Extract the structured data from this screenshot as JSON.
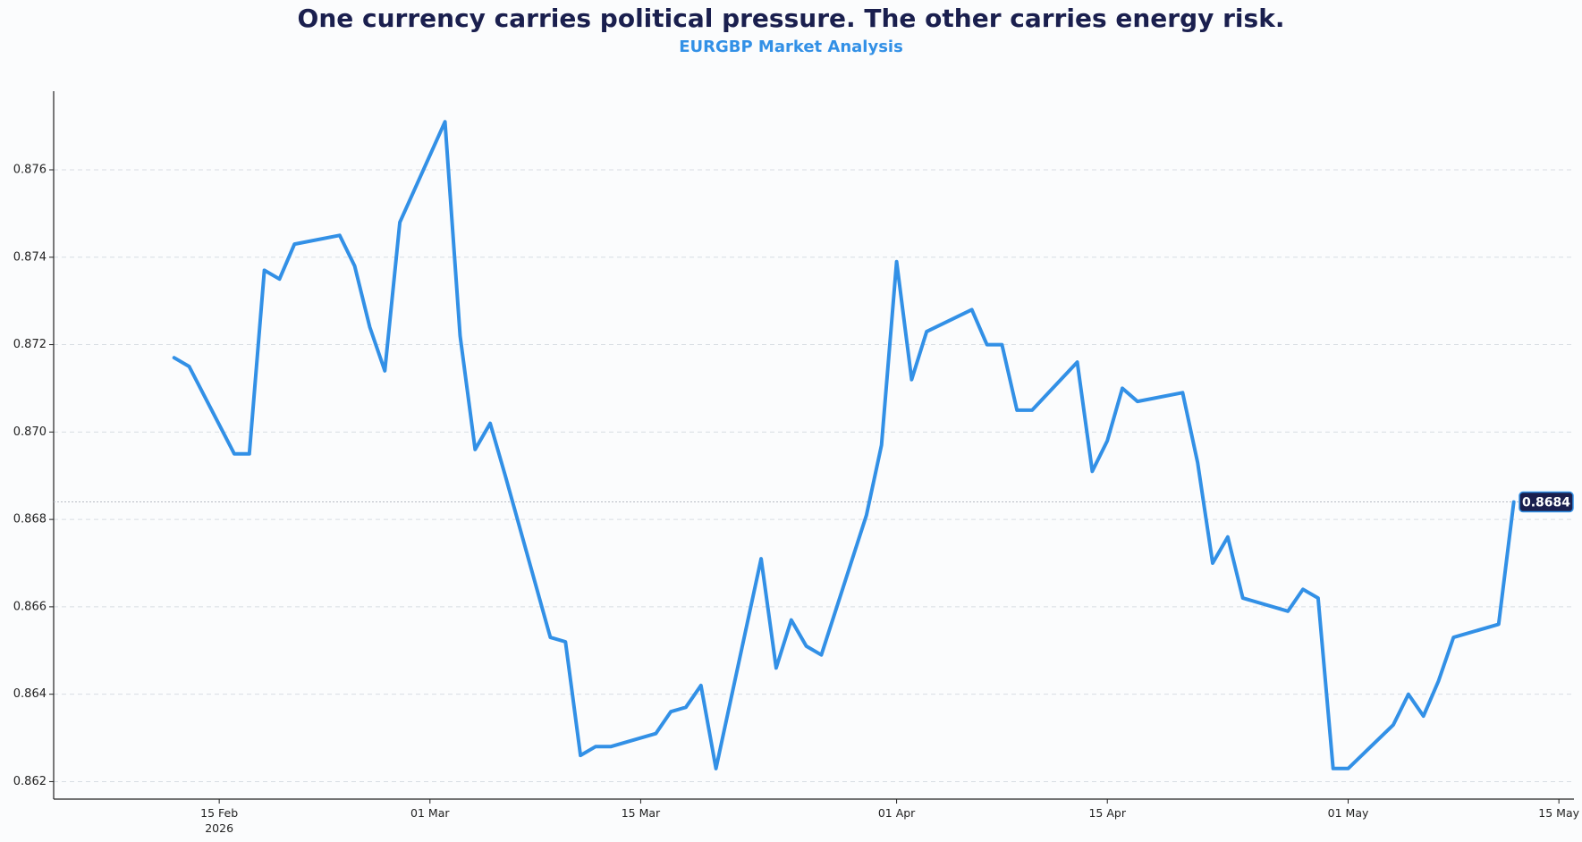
{
  "header": {
    "title": "One currency carries political pressure. The other carries energy risk.",
    "subtitle": "EURGBP Market Analysis"
  },
  "colors": {
    "line": "#3290e6",
    "title": "#1a1f4e",
    "subtitle": "#3290e6",
    "badge_bg": "#1a1f4e",
    "grid": "#d8dde3"
  },
  "chart_data": {
    "type": "line",
    "title": "One currency carries political pressure. The other carries energy risk.",
    "subtitle": "EURGBP Market Analysis",
    "xlabel": "",
    "ylabel": "",
    "ylim": [
      0.8616,
      0.8778
    ],
    "xlim": [
      "2026-02-04",
      "2026-05-16"
    ],
    "grid": "horizontal dashed",
    "y_ticks": [
      0.862,
      0.864,
      0.866,
      0.868,
      0.87,
      0.872,
      0.874,
      0.876
    ],
    "y_tick_labels": [
      "0.862",
      "0.864",
      "0.866",
      "0.868",
      "0.870",
      "0.872",
      "0.874",
      "0.876"
    ],
    "x_ticks": [
      {
        "date": "2026-02-15",
        "label": "15 Feb",
        "sublabel": "2026"
      },
      {
        "date": "2026-03-01",
        "label": "01 Mar",
        "sublabel": ""
      },
      {
        "date": "2026-03-15",
        "label": "15 Mar",
        "sublabel": ""
      },
      {
        "date": "2026-04-01",
        "label": "01 Apr",
        "sublabel": ""
      },
      {
        "date": "2026-04-15",
        "label": "15 Apr",
        "sublabel": ""
      },
      {
        "date": "2026-05-01",
        "label": "01 May",
        "sublabel": ""
      },
      {
        "date": "2026-05-15",
        "label": "15 May",
        "sublabel": ""
      }
    ],
    "last_value_label": "0.8684",
    "series": [
      {
        "name": "",
        "x": [
          "2026-02-12",
          "2026-02-13",
          "2026-02-16",
          "2026-02-17",
          "2026-02-18",
          "2026-02-19",
          "2026-02-20",
          "2026-02-23",
          "2026-02-24",
          "2026-02-25",
          "2026-02-26",
          "2026-02-27",
          "2026-03-02",
          "2026-03-03",
          "2026-03-04",
          "2026-03-05",
          "2026-03-06",
          "2026-03-09",
          "2026-03-10",
          "2026-03-11",
          "2026-03-12",
          "2026-03-13",
          "2026-03-16",
          "2026-03-17",
          "2026-03-18",
          "2026-03-19",
          "2026-03-20",
          "2026-03-23",
          "2026-03-24",
          "2026-03-25",
          "2026-03-26",
          "2026-03-27",
          "2026-03-30",
          "2026-03-31",
          "2026-04-01",
          "2026-04-02",
          "2026-04-03",
          "2026-04-06",
          "2026-04-07",
          "2026-04-08",
          "2026-04-09",
          "2026-04-10",
          "2026-04-13",
          "2026-04-14",
          "2026-04-15",
          "2026-04-16",
          "2026-04-17",
          "2026-04-20",
          "2026-04-21",
          "2026-04-22",
          "2026-04-23",
          "2026-04-24",
          "2026-04-27",
          "2026-04-28",
          "2026-04-29",
          "2026-04-30",
          "2026-05-01",
          "2026-05-04",
          "2026-05-05",
          "2026-05-06",
          "2026-05-07",
          "2026-05-08",
          "2026-05-11",
          "2026-05-12"
        ],
        "values": [
          0.8717,
          0.8715,
          0.8695,
          0.8695,
          0.8737,
          0.8735,
          0.8743,
          0.8745,
          0.8738,
          0.8724,
          0.8714,
          0.8748,
          0.8771,
          0.8722,
          0.8696,
          0.8702,
          0.869,
          0.8653,
          0.8652,
          0.8626,
          0.8628,
          0.8628,
          0.8631,
          0.8636,
          0.8637,
          0.8642,
          0.8623,
          0.8671,
          0.8646,
          0.8657,
          0.8651,
          0.8649,
          0.8681,
          0.8697,
          0.8739,
          0.8712,
          0.8723,
          0.8728,
          0.872,
          0.872,
          0.8705,
          0.8705,
          0.8716,
          0.8691,
          0.8698,
          0.871,
          0.8707,
          0.8709,
          0.8693,
          0.867,
          0.8676,
          0.8662,
          0.8659,
          0.8664,
          0.8662,
          0.8623,
          0.8623,
          0.8633,
          0.864,
          0.8635,
          0.8643,
          0.8653,
          0.8656,
          0.8684
        ]
      }
    ]
  }
}
